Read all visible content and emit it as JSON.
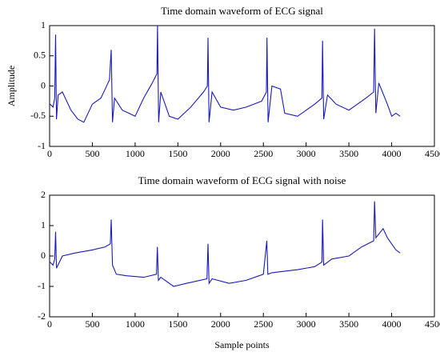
{
  "chart_data": [
    {
      "type": "line",
      "title": "Time domain waveform of ECG signal",
      "y_label": "Amplitude",
      "xlim": [
        0,
        4500
      ],
      "xticks": [
        0,
        500,
        1000,
        1500,
        2000,
        2500,
        3000,
        3500,
        4000,
        4500
      ],
      "ylim": [
        -1,
        1
      ],
      "yticks": [
        -1,
        -0.5,
        0,
        0.5,
        1
      ],
      "series": [
        {
          "color": "#1a1ab8",
          "x": [
            5,
            40,
            60,
            70,
            80,
            100,
            150,
            250,
            330,
            400,
            500,
            600,
            650,
            700,
            720,
            735,
            760,
            850,
            1000,
            1100,
            1200,
            1255,
            1262,
            1275,
            1300,
            1400,
            1500,
            1650,
            1800,
            1845,
            1852,
            1865,
            1900,
            2000,
            2150,
            2300,
            2480,
            2535,
            2542,
            2555,
            2600,
            2700,
            2750,
            2900,
            3100,
            3185,
            3192,
            3205,
            3250,
            3350,
            3500,
            3700,
            3790,
            3800,
            3815,
            3850,
            3950,
            4000,
            4050,
            4100
          ],
          "values": [
            -0.3,
            -0.35,
            -0.2,
            0.85,
            -0.55,
            -0.15,
            -0.1,
            -0.4,
            -0.55,
            -0.6,
            -0.3,
            -0.2,
            -0.05,
            0.1,
            0.6,
            -0.6,
            -0.2,
            -0.4,
            -0.5,
            -0.2,
            0.05,
            0.2,
            1.0,
            -0.6,
            -0.1,
            -0.5,
            -0.55,
            -0.35,
            -0.1,
            0.0,
            0.8,
            -0.6,
            -0.1,
            -0.35,
            -0.4,
            -0.35,
            -0.25,
            -0.1,
            0.8,
            -0.6,
            0.0,
            -0.05,
            -0.45,
            -0.5,
            -0.3,
            -0.2,
            0.75,
            -0.55,
            -0.15,
            -0.3,
            -0.4,
            -0.2,
            -0.1,
            0.95,
            -0.45,
            0.05,
            -0.3,
            -0.5,
            -0.45,
            -0.5
          ]
        }
      ]
    },
    {
      "type": "line",
      "title": "Time domain waveform of ECG signal with noise",
      "x_label": "Sample points",
      "xlim": [
        0,
        4500
      ],
      "xticks": [
        0,
        500,
        1000,
        1500,
        2000,
        2500,
        3000,
        3500,
        4000,
        4500
      ],
      "ylim": [
        -2,
        2
      ],
      "yticks": [
        -2,
        -1,
        0,
        1,
        2
      ],
      "series": [
        {
          "color": "#1a1ab8",
          "x": [
            5,
            40,
            60,
            70,
            80,
            150,
            300,
            500,
            650,
            710,
            720,
            735,
            780,
            900,
            1100,
            1250,
            1260,
            1272,
            1300,
            1450,
            1600,
            1840,
            1852,
            1865,
            1900,
            2100,
            2300,
            2500,
            2540,
            2552,
            2600,
            2900,
            3100,
            3185,
            3192,
            3205,
            3300,
            3500,
            3650,
            3790,
            3800,
            3815,
            3900,
            3950,
            4050,
            4100
          ],
          "values": [
            -0.2,
            -0.3,
            -0.1,
            0.8,
            -0.4,
            0.0,
            0.1,
            0.2,
            0.3,
            0.4,
            1.2,
            -0.3,
            -0.6,
            -0.65,
            -0.7,
            -0.6,
            0.3,
            -0.8,
            -0.7,
            -1.0,
            -0.9,
            -0.75,
            0.4,
            -0.9,
            -0.75,
            -0.9,
            -0.8,
            -0.6,
            0.5,
            -0.6,
            -0.55,
            -0.45,
            -0.35,
            -0.2,
            1.2,
            -0.3,
            -0.1,
            0.0,
            0.3,
            0.5,
            1.8,
            0.6,
            0.9,
            0.6,
            0.2,
            0.1
          ]
        }
      ]
    }
  ]
}
